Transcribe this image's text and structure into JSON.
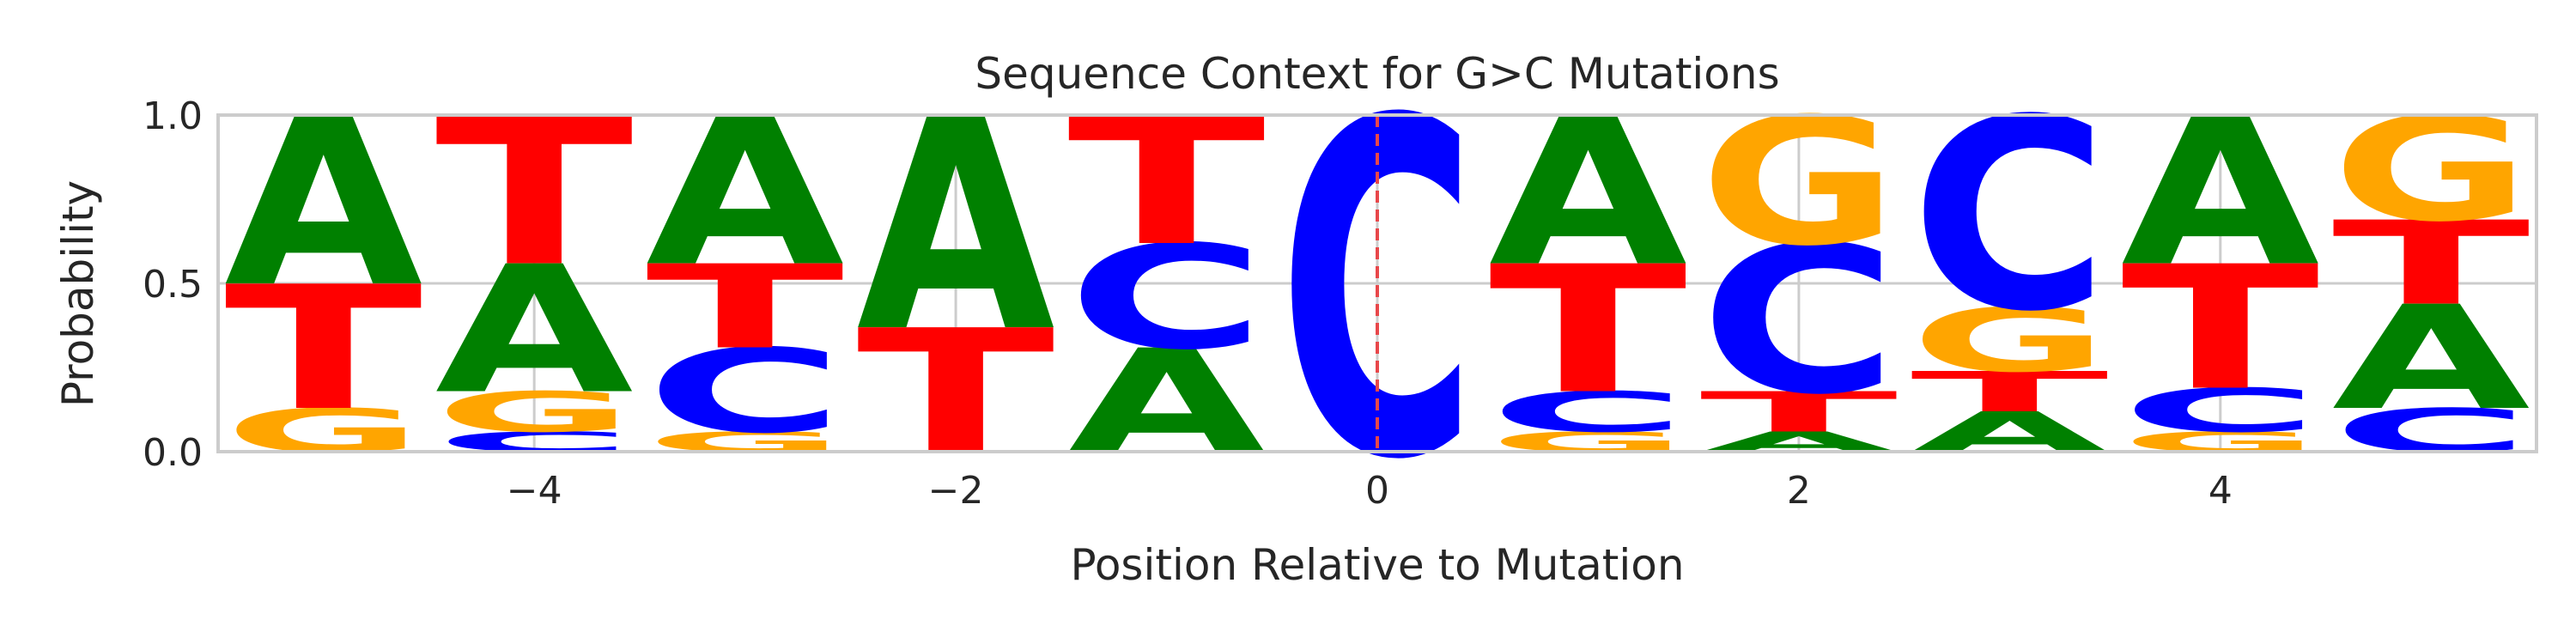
{
  "chart_data": {
    "type": "sequence-logo",
    "title": "Sequence Context for G>C Mutations",
    "xlabel": "Position Relative to Mutation",
    "ylabel": "Probability",
    "xlim": [
      -5.5,
      5.5
    ],
    "ylim": [
      0,
      1
    ],
    "x_ticks": [
      -4,
      -2,
      0,
      2,
      4
    ],
    "x_tick_labels": [
      "−4",
      "−2",
      "0",
      "2",
      "4"
    ],
    "y_ticks": [
      0,
      0.5,
      1
    ],
    "y_tick_labels": [
      "0.0",
      "0.5",
      "1.0"
    ],
    "grid": true,
    "mutation_marker": {
      "position": 0,
      "color": "#e8474a",
      "style": "dashed"
    },
    "colors": {
      "A": "#008000",
      "C": "#0000ff",
      "G": "#ffa500",
      "T": "#ff0000"
    },
    "positions": [
      -5,
      -4,
      -3,
      -2,
      -1,
      0,
      1,
      2,
      3,
      4,
      5
    ],
    "probabilities": [
      {
        "A": 0.5,
        "C": 0.0,
        "G": 0.13,
        "T": 0.37
      },
      {
        "A": 0.38,
        "C": 0.06,
        "G": 0.12,
        "T": 0.44
      },
      {
        "A": 0.44,
        "C": 0.25,
        "G": 0.06,
        "T": 0.25
      },
      {
        "A": 0.63,
        "C": 0.0,
        "G": 0.0,
        "T": 0.37
      },
      {
        "A": 0.31,
        "C": 0.31,
        "G": 0.0,
        "T": 0.38
      },
      {
        "A": 0.0,
        "C": 1.0,
        "G": 0.0,
        "T": 0.0
      },
      {
        "A": 0.44,
        "C": 0.12,
        "G": 0.06,
        "T": 0.38
      },
      {
        "A": 0.06,
        "C": 0.44,
        "G": 0.38,
        "T": 0.12
      },
      {
        "A": 0.12,
        "C": 0.57,
        "G": 0.19,
        "T": 0.12
      },
      {
        "A": 0.44,
        "C": 0.13,
        "G": 0.06,
        "T": 0.37
      },
      {
        "A": 0.31,
        "C": 0.13,
        "G": 0.31,
        "T": 0.25
      }
    ],
    "stack_order": [
      [
        "G",
        "T",
        "A"
      ],
      [
        "C",
        "G",
        "A",
        "T"
      ],
      [
        "G",
        "C",
        "T",
        "A"
      ],
      [
        "T",
        "A"
      ],
      [
        "A",
        "C",
        "T"
      ],
      [
        "C"
      ],
      [
        "G",
        "C",
        "T",
        "A"
      ],
      [
        "A",
        "T",
        "C",
        "G"
      ],
      [
        "A",
        "T",
        "G",
        "C"
      ],
      [
        "G",
        "C",
        "T",
        "A"
      ],
      [
        "C",
        "A",
        "T",
        "G"
      ]
    ]
  }
}
